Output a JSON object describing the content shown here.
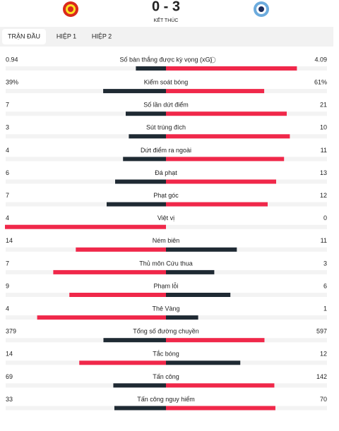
{
  "header": {
    "score": "0 - 3",
    "status": "KẾT THÚC"
  },
  "tabs": [
    "TRẬN ĐẦU",
    "HIỆP 1",
    "HIỆP 2"
  ],
  "stats": [
    {
      "label": "Số bàn thắng được kỳ vọng (xG)",
      "home": 0.94,
      "away": 4.09
    },
    {
      "label": "Kiểm soát bóng",
      "home": 39,
      "away": 61,
      "home_label": "39%",
      "away_label": "61%"
    },
    {
      "label": "Số lần dứt điểm",
      "home": 7,
      "away": 21
    },
    {
      "label": "Sút trúng đích",
      "home": 3,
      "away": 10
    },
    {
      "label": "Dứt điểm ra ngoài",
      "home": 4,
      "away": 11
    },
    {
      "label": "Đá phạt",
      "home": 6,
      "away": 13
    },
    {
      "label": "Phạt góc",
      "home": 7,
      "away": 12
    },
    {
      "label": "Việt vị",
      "home": 4,
      "away": 0
    },
    {
      "label": "Ném biên",
      "home": 14,
      "away": 11
    },
    {
      "label": "Thủ môn Cứu thua",
      "home": 7,
      "away": 3
    },
    {
      "label": "Phạm lỗi",
      "home": 9,
      "away": 6
    },
    {
      "label": "Thẻ Vàng",
      "home": 4,
      "away": 1
    },
    {
      "label": "Tổng số đường chuyền",
      "home": 379,
      "away": 597
    },
    {
      "label": "Tắc bóng",
      "home": 14,
      "away": 12
    },
    {
      "label": "Tấn công",
      "home": 69,
      "away": 142
    },
    {
      "label": "Tấn công nguy hiểm",
      "home": 33,
      "away": 70
    }
  ]
}
